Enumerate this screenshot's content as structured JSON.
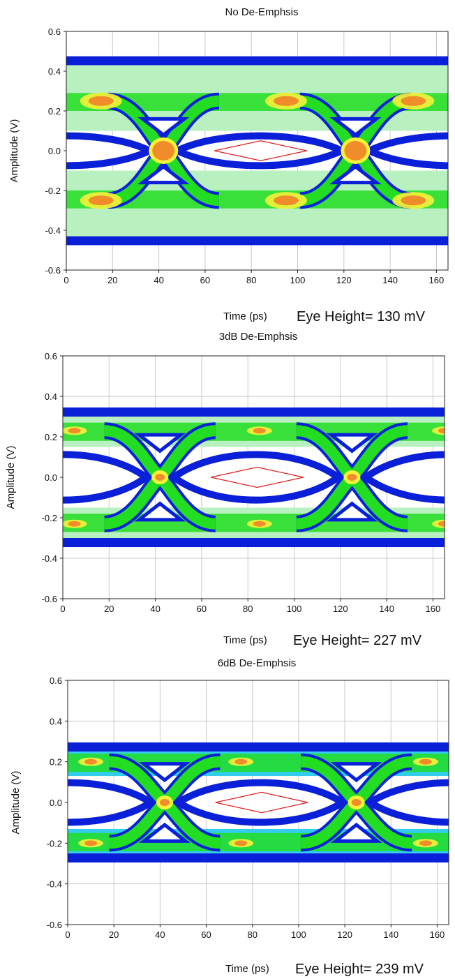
{
  "chart_data": [
    {
      "type": "eye_diagram",
      "title": "No De-Emphsis",
      "xlabel": "Time (ps)",
      "ylabel": "Amplitude (V)",
      "xlim": [
        0,
        165
      ],
      "ylim": [
        -0.6,
        0.6
      ],
      "xticks": [
        "0",
        "20",
        "40",
        "60",
        "80",
        "100",
        "120",
        "140",
        "160"
      ],
      "yticks": [
        "0.6",
        "0.4",
        "0.2",
        "0.0",
        "-0.2",
        "-0.4",
        "-0.6"
      ],
      "grid": true,
      "annotation": "Eye Height= 130 mV",
      "rail_outer": 0.45,
      "rail_inner": 0.25,
      "rail_inner_edge": 0.1,
      "cross_times": [
        42,
        125
      ],
      "eye_mask": {
        "x": [
          64,
          84,
          104
        ],
        "y_half": 0.05
      }
    },
    {
      "type": "eye_diagram",
      "title": "3dB De-Emphsis",
      "xlabel": "Time (ps)",
      "ylabel": "Amplitude (V)",
      "xlim": [
        0,
        165
      ],
      "ylim": [
        -0.6,
        0.6
      ],
      "xticks": [
        "0",
        "20",
        "40",
        "60",
        "80",
        "100",
        "120",
        "140",
        "160"
      ],
      "yticks": [
        "0.6",
        "0.4",
        "0.2",
        "0.0",
        "-0.2",
        "-0.4",
        "-0.6"
      ],
      "grid": true,
      "annotation": "Eye Height= 227 mV",
      "rail_outer": 0.32,
      "rail_inner": 0.23,
      "rail_inner_edge": 0.15,
      "cross_times": [
        42,
        125
      ],
      "eye_mask": {
        "x": [
          64,
          84,
          104
        ],
        "y_half": 0.05
      }
    },
    {
      "type": "eye_diagram",
      "title": "6dB De-Emphsis",
      "xlabel": "Time (ps)",
      "ylabel": "Amplitude (V)",
      "xlim": [
        0,
        165
      ],
      "ylim": [
        -0.6,
        0.6
      ],
      "xticks": [
        "0",
        "20",
        "40",
        "60",
        "80",
        "100",
        "120",
        "140",
        "160"
      ],
      "yticks": [
        "0.6",
        "0.4",
        "0.2",
        "0.0",
        "-0.2",
        "-0.4",
        "-0.6"
      ],
      "grid": true,
      "annotation": "Eye Height= 239 mV",
      "rail_outer": 0.27,
      "rail_inner": 0.2,
      "rail_inner_edge": 0.13,
      "cross_times": [
        42,
        125
      ],
      "eye_mask": {
        "x": [
          64,
          84,
          104
        ],
        "y_half": 0.05
      }
    }
  ],
  "colors": {
    "outer_band": "#0a1fd8",
    "cyan_band": "#33ccee",
    "light_band": "#b8f0c0",
    "green_band": "#22dd22",
    "hot_yellow": "#f6f23a",
    "hot_orange": "#f08c2a",
    "mask": "#e02020",
    "grid": "#c8c8c8"
  }
}
